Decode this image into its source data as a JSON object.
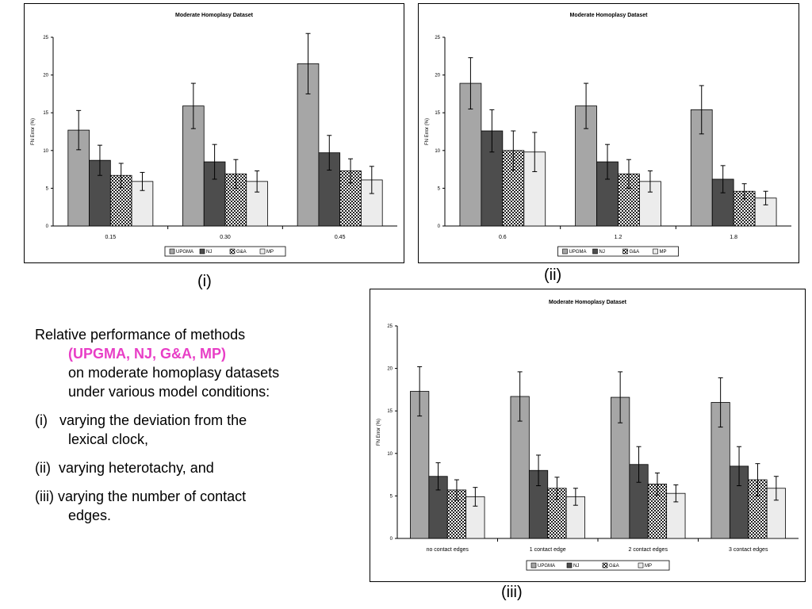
{
  "figure_labels": [
    "(i)",
    "(ii)",
    "(iii)"
  ],
  "description": {
    "intro": "Relative performance of methods",
    "methods": "(UPGMA, NJ, G&A, MP)",
    "line2": "on moderate homoplasy datasets",
    "line3": "under various model conditions:",
    "items": [
      {
        "num": "(i)",
        "text1": "varying the deviation from the",
        "text2": "lexical clock,"
      },
      {
        "num": "(ii)",
        "text1": "varying heterotachy, and",
        "text2": ""
      },
      {
        "num": "(iii)",
        "text1": "varying the number of contact",
        "text2": "edges."
      }
    ]
  },
  "chart_data": [
    {
      "type": "bar",
      "title": "Moderate Homoplasy Dataset",
      "xlabel": "",
      "ylabel": "FN Error (%)",
      "ylim": [
        0,
        25
      ],
      "yticks": [
        "0",
        "5",
        "10",
        "15",
        "20",
        "25"
      ],
      "categories": [
        "0.15",
        "0.30",
        "0.45"
      ],
      "legend": "bottom",
      "series": [
        {
          "name": "UPGMA",
          "values": [
            12.7,
            15.9,
            21.5
          ],
          "err": [
            2.6,
            3.0,
            4.0
          ]
        },
        {
          "name": "NJ",
          "values": [
            8.7,
            8.5,
            9.7
          ],
          "err": [
            2.0,
            2.3,
            2.3
          ]
        },
        {
          "name": "G&A",
          "values": [
            6.7,
            6.9,
            7.3
          ],
          "err": [
            1.6,
            1.9,
            1.6
          ]
        },
        {
          "name": "MP",
          "values": [
            5.9,
            5.9,
            6.1
          ],
          "err": [
            1.2,
            1.4,
            1.8
          ]
        }
      ]
    },
    {
      "type": "bar",
      "title": "Moderate Homoplasy Dataset",
      "xlabel": "",
      "ylabel": "FN Error (%)",
      "ylim": [
        0,
        25
      ],
      "yticks": [
        "0",
        "5",
        "10",
        "15",
        "20",
        "25"
      ],
      "categories": [
        "0.6",
        "1.2",
        "1.8"
      ],
      "legend": "bottom",
      "series": [
        {
          "name": "UPGMA",
          "values": [
            18.9,
            15.9,
            15.4
          ],
          "err": [
            3.4,
            3.0,
            3.2
          ]
        },
        {
          "name": "NJ",
          "values": [
            12.6,
            8.5,
            6.2
          ],
          "err": [
            2.8,
            2.3,
            1.8
          ]
        },
        {
          "name": "G&A",
          "values": [
            10.0,
            6.9,
            4.6
          ],
          "err": [
            2.6,
            1.9,
            1.0
          ]
        },
        {
          "name": "MP",
          "values": [
            9.8,
            5.9,
            3.7
          ],
          "err": [
            2.6,
            1.4,
            0.9
          ]
        }
      ]
    },
    {
      "type": "bar",
      "title": "Moderate Homoplasy Dataset",
      "xlabel": "",
      "ylabel": "FN Error (%)",
      "ylim": [
        0,
        25
      ],
      "yticks": [
        "0",
        "5",
        "10",
        "15",
        "20",
        "25"
      ],
      "categories": [
        "no contact edges",
        "1 contact edge",
        "2 contact edges",
        "3 contact edges"
      ],
      "legend": "bottom",
      "series": [
        {
          "name": "UPGMA",
          "values": [
            17.3,
            16.7,
            16.6,
            16.0
          ],
          "err": [
            2.9,
            2.9,
            3.0,
            2.9
          ]
        },
        {
          "name": "NJ",
          "values": [
            7.3,
            8.0,
            8.7,
            8.5
          ],
          "err": [
            1.6,
            1.8,
            2.1,
            2.3
          ]
        },
        {
          "name": "G&A",
          "values": [
            5.7,
            5.9,
            6.4,
            6.9
          ],
          "err": [
            1.2,
            1.3,
            1.3,
            1.9
          ]
        },
        {
          "name": "MP",
          "values": [
            4.9,
            4.9,
            5.3,
            5.9
          ],
          "err": [
            1.1,
            1.0,
            1.0,
            1.4
          ]
        }
      ]
    }
  ]
}
